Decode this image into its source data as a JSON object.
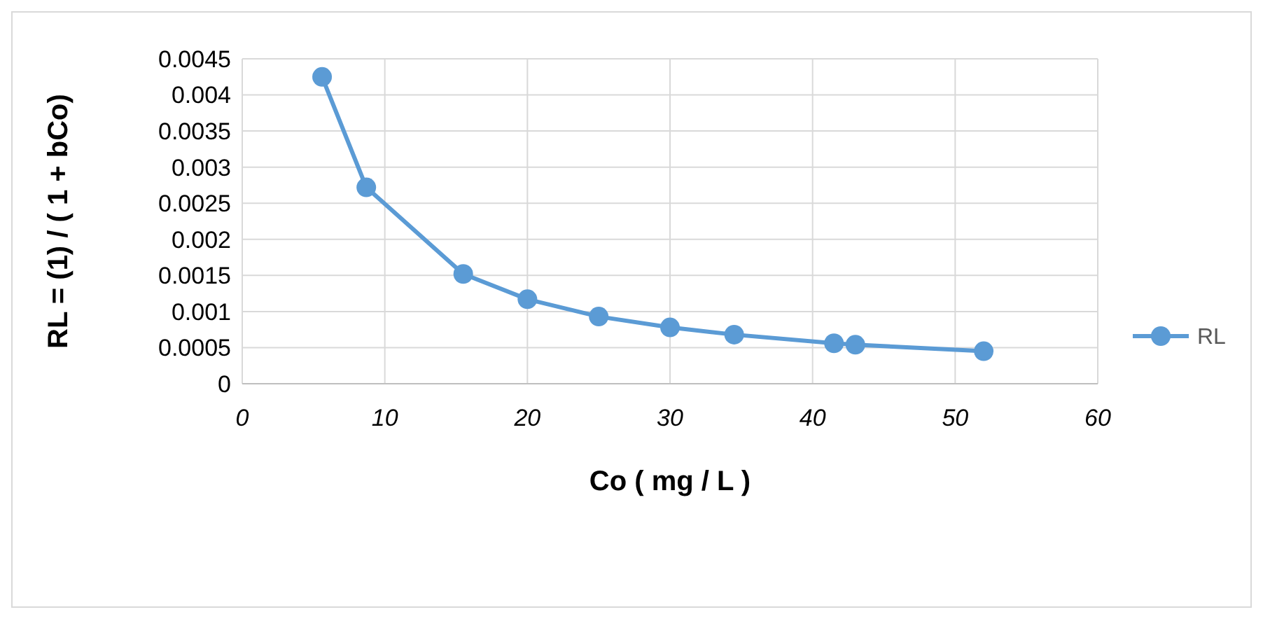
{
  "chart_data": {
    "type": "line",
    "xlabel": "Co ( mg / L )",
    "ylabel": "RL = (1) / ( 1 + bCo)",
    "x": [
      5.6,
      8.7,
      15.5,
      20,
      25,
      30,
      34.5,
      41.5,
      43,
      52
    ],
    "series": [
      {
        "name": "RL",
        "color": "#5b9bd5",
        "values": [
          0.00425,
          0.00272,
          0.00152,
          0.00117,
          0.00093,
          0.00078,
          0.00068,
          0.00056,
          0.00054,
          0.00045
        ]
      }
    ],
    "xlim": [
      0,
      60
    ],
    "xticks": [
      0,
      10,
      20,
      30,
      40,
      50,
      60
    ],
    "ylim": [
      0,
      0.0045
    ],
    "yticks": [
      0,
      0.0005,
      0.001,
      0.0015,
      0.002,
      0.0025,
      0.003,
      0.0035,
      0.004,
      0.0045
    ],
    "grid": true,
    "legend": "right",
    "marker": "circle",
    "line_style": "solid"
  }
}
